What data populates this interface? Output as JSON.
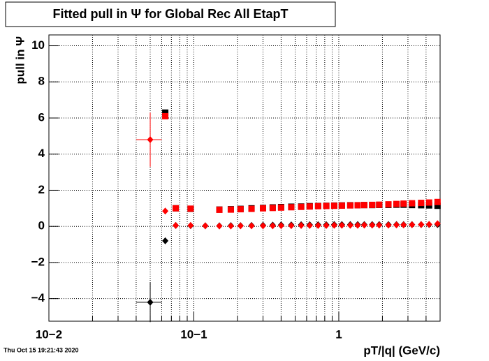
{
  "chart_data": {
    "type": "scatter",
    "title": "Fitted pull in  Ψ  for Global Rec All EtapT",
    "x_label": "pT/|q| (GeV/c)",
    "y_label": "pull in  Ψ",
    "timestamp": "Thu Oct 15 19:21:43 2020",
    "log_x": true,
    "grid": true,
    "xlim": [
      0.01,
      5
    ],
    "ylim": [
      -5.25,
      10.6
    ],
    "xticks": [
      {
        "value": 0.01,
        "label": "10−2"
      },
      {
        "value": 0.1,
        "label": "10−1"
      },
      1
    ],
    "xminorticks": [
      0.02,
      0.03,
      0.04,
      0.05,
      0.06,
      0.07,
      0.08,
      0.09,
      0.2,
      0.3,
      0.4,
      0.5,
      0.6,
      0.7,
      0.8,
      0.9,
      2,
      3,
      4
    ],
    "yticks": [
      {
        "value": -4,
        "label": "−4"
      },
      {
        "value": -2,
        "label": "−2"
      },
      0,
      2,
      4,
      6,
      8,
      10
    ],
    "x": [
      0.05,
      0.0635,
      0.075,
      0.095,
      0.12,
      0.15,
      0.18,
      0.21,
      0.25,
      0.3,
      0.35,
      0.4,
      0.47,
      0.55,
      0.63,
      0.72,
      0.82,
      0.93,
      1.05,
      1.2,
      1.35,
      1.5,
      1.7,
      1.9,
      2.2,
      2.5,
      2.8,
      3.2,
      3.7,
      4.2,
      4.8
    ],
    "series": [
      {
        "color": "#000000",
        "marker": "square",
        "values": [
          null,
          6.3,
          1.0,
          0.97,
          null,
          0.93,
          0.95,
          0.97,
          1.0,
          1.02,
          1.05,
          1.07,
          1.09,
          1.1,
          1.12,
          1.13,
          1.14,
          1.15,
          1.16,
          1.17,
          1.17,
          1.18,
          1.18,
          1.19,
          1.19,
          1.2,
          1.2,
          1.18,
          1.17,
          1.16,
          1.14
        ]
      },
      {
        "color": "#ff0000",
        "marker": "square",
        "values": [
          null,
          6.1,
          1.0,
          0.98,
          null,
          0.92,
          0.93,
          0.95,
          0.97,
          1.0,
          1.02,
          1.04,
          1.06,
          1.08,
          1.1,
          1.12,
          1.13,
          1.14,
          1.15,
          1.16,
          1.17,
          1.18,
          1.19,
          1.2,
          1.22,
          1.24,
          1.26,
          1.28,
          1.3,
          1.32,
          1.35
        ]
      },
      {
        "color": "#000000",
        "marker": "diamond",
        "values": [
          -4.2,
          -0.8,
          0.05,
          0.04,
          0.03,
          0.03,
          0.04,
          0.04,
          0.05,
          0.06,
          0.07,
          0.08,
          0.08,
          0.09,
          0.09,
          0.09,
          0.09,
          0.1,
          0.1,
          0.1,
          0.1,
          0.1,
          0.1,
          0.1,
          0.1,
          0.1,
          0.1,
          0.1,
          0.1,
          0.1,
          0.1
        ],
        "errors": [
          1.1,
          null,
          null,
          null,
          null,
          null,
          null,
          null,
          null,
          null,
          null,
          null,
          null,
          null,
          null,
          null,
          null,
          null,
          null,
          null,
          null,
          null,
          null,
          null,
          null,
          null,
          null,
          null,
          null,
          null,
          null
        ],
        "x_errors": [
          0.01,
          null,
          null,
          null,
          null,
          null,
          null,
          null,
          null,
          null,
          null,
          null,
          null,
          null,
          null,
          null,
          null,
          null,
          null,
          null,
          null,
          null,
          null,
          null,
          null,
          null,
          null,
          null,
          null,
          null,
          null
        ]
      },
      {
        "color": "#ff0000",
        "marker": "diamond",
        "values": [
          4.8,
          0.85,
          0.05,
          0.05,
          0.03,
          0.02,
          0.02,
          0.03,
          0.03,
          0.03,
          0.03,
          0.04,
          0.04,
          0.05,
          0.05,
          0.05,
          0.05,
          0.06,
          0.06,
          0.06,
          0.06,
          0.07,
          0.07,
          0.07,
          0.07,
          0.08,
          0.08,
          0.09,
          0.1,
          0.11,
          0.15
        ],
        "errors": [
          1.5,
          null,
          null,
          null,
          null,
          null,
          null,
          null,
          null,
          null,
          null,
          null,
          null,
          null,
          null,
          null,
          null,
          null,
          null,
          null,
          null,
          null,
          null,
          null,
          null,
          null,
          null,
          null,
          null,
          null,
          null
        ],
        "x_errors": [
          0.01,
          null,
          null,
          null,
          null,
          null,
          null,
          null,
          null,
          null,
          null,
          null,
          null,
          null,
          null,
          null,
          null,
          null,
          null,
          null,
          null,
          null,
          null,
          null,
          null,
          null,
          null,
          null,
          null,
          null,
          null
        ]
      }
    ]
  }
}
